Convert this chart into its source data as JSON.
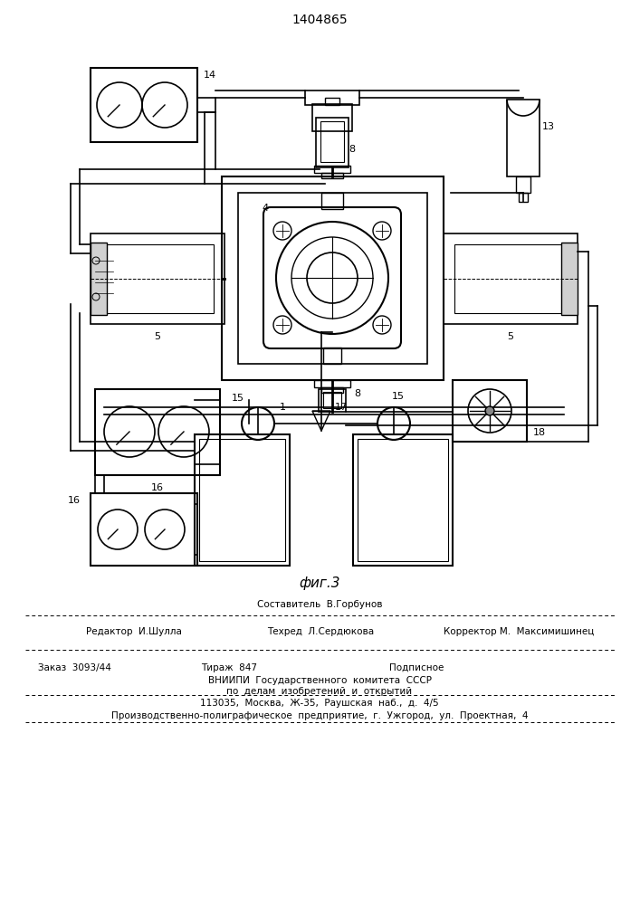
{
  "patent_number": "1404865",
  "fig_label": "фиг.3",
  "bg_color": "#ffffff",
  "line_color": "#000000",
  "footer": {
    "line1_center": "Составитель  В.Горбунов",
    "line2_left": "Редактор  И.Шулла",
    "line2_center": "Техред  Л.Сердюкова",
    "line2_right": "Корректор М.  Максимишинец",
    "line3_left": "Заказ  3093/44",
    "line3_center_top": "Тираж  847",
    "line3_right": "Подписное",
    "line4_center": "ВНИИПИ  Государственного  комитета  СССР",
    "line5_center": "по  делам  изобретений  и  открытий",
    "line6_center": "113035,  Москва,  Ж-35,  Раушская  наб.,  д.  4/5",
    "line7": "Производственно-полиграфическое  предприятие,  г.  Ужгород,  ул.  Проектная,  4"
  }
}
